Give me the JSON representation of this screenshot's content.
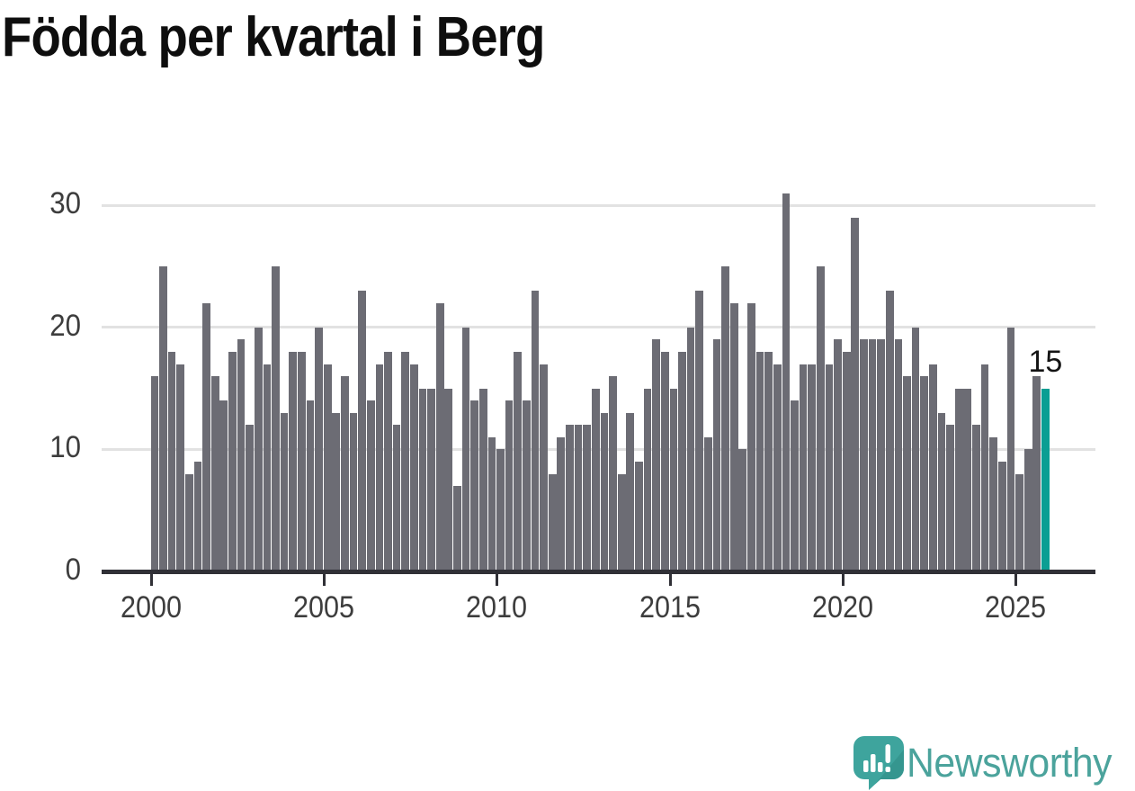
{
  "header": {
    "title": "Födda per kvartal i Berg"
  },
  "colors": {
    "bar": "#6c6c74",
    "highlight": "#0a9e93",
    "gridline": "#e2e2e2",
    "axis_line": "#303036",
    "axis_text": "#3d3d3d",
    "title_text": "#0e0e0e",
    "annotation_text": "#141414",
    "logo_teal": "#3ea49d",
    "logo_teal_dark": "#35968f",
    "logo_text": "#4ba39c"
  },
  "chart_data": {
    "type": "bar",
    "title": "Födda per kvartal i Berg",
    "xlabel": "",
    "ylabel": "",
    "ylim": [
      0,
      33
    ],
    "grid": true,
    "legend": "none",
    "y_tick_values": [
      0,
      10,
      20,
      30
    ],
    "y_tick_labels": [
      "0",
      "10",
      "20",
      "30"
    ],
    "x_tick_labels": [
      "2000",
      "2005",
      "2010",
      "2015",
      "2020",
      "2025"
    ],
    "x_tick_quarter_index": [
      0,
      20,
      40,
      60,
      80,
      100
    ],
    "highlight_index": 103,
    "annotation": {
      "text": "15",
      "target_index": 103
    },
    "categories": [
      "2000 Q1",
      "2000 Q2",
      "2000 Q3",
      "2000 Q4",
      "2001 Q1",
      "2001 Q2",
      "2001 Q3",
      "2001 Q4",
      "2002 Q1",
      "2002 Q2",
      "2002 Q3",
      "2002 Q4",
      "2003 Q1",
      "2003 Q2",
      "2003 Q3",
      "2003 Q4",
      "2004 Q1",
      "2004 Q2",
      "2004 Q3",
      "2004 Q4",
      "2005 Q1",
      "2005 Q2",
      "2005 Q3",
      "2005 Q4",
      "2006 Q1",
      "2006 Q2",
      "2006 Q3",
      "2006 Q4",
      "2007 Q1",
      "2007 Q2",
      "2007 Q3",
      "2007 Q4",
      "2008 Q1",
      "2008 Q2",
      "2008 Q3",
      "2008 Q4",
      "2009 Q1",
      "2009 Q2",
      "2009 Q3",
      "2009 Q4",
      "2010 Q1",
      "2010 Q2",
      "2010 Q3",
      "2010 Q4",
      "2011 Q1",
      "2011 Q2",
      "2011 Q3",
      "2011 Q4",
      "2012 Q1",
      "2012 Q2",
      "2012 Q3",
      "2012 Q4",
      "2013 Q1",
      "2013 Q2",
      "2013 Q3",
      "2013 Q4",
      "2014 Q1",
      "2014 Q2",
      "2014 Q3",
      "2014 Q4",
      "2015 Q1",
      "2015 Q2",
      "2015 Q3",
      "2015 Q4",
      "2016 Q1",
      "2016 Q2",
      "2016 Q3",
      "2016 Q4",
      "2017 Q1",
      "2017 Q2",
      "2017 Q3",
      "2017 Q4",
      "2018 Q1",
      "2018 Q2",
      "2018 Q3",
      "2018 Q4",
      "2019 Q1",
      "2019 Q2",
      "2019 Q3",
      "2019 Q4",
      "2020 Q1",
      "2020 Q2",
      "2020 Q3",
      "2020 Q4",
      "2021 Q1",
      "2021 Q2",
      "2021 Q3",
      "2021 Q4",
      "2022 Q1",
      "2022 Q2",
      "2022 Q3",
      "2022 Q4",
      "2023 Q1",
      "2023 Q2",
      "2023 Q3",
      "2023 Q4",
      "2024 Q1",
      "2024 Q2",
      "2024 Q3",
      "2024 Q4",
      "2025 Q1",
      "2025 Q2",
      "2025 Q3",
      "2025 Q4"
    ],
    "values": [
      16,
      25,
      18,
      17,
      8,
      9,
      22,
      16,
      14,
      18,
      19,
      12,
      20,
      17,
      25,
      13,
      18,
      18,
      14,
      20,
      17,
      13,
      16,
      13,
      23,
      14,
      17,
      18,
      12,
      18,
      17,
      15,
      15,
      22,
      15,
      7,
      20,
      14,
      15,
      11,
      10,
      14,
      18,
      14,
      23,
      17,
      8,
      11,
      12,
      12,
      12,
      15,
      13,
      16,
      8,
      13,
      9,
      15,
      19,
      18,
      15,
      18,
      20,
      23,
      11,
      19,
      25,
      22,
      10,
      22,
      18,
      18,
      17,
      31,
      14,
      17,
      17,
      25,
      17,
      19,
      18,
      29,
      19,
      19,
      19,
      23,
      19,
      16,
      20,
      16,
      17,
      13,
      12,
      15,
      15,
      12,
      17,
      11,
      9,
      20,
      8,
      10,
      16,
      15
    ]
  },
  "footer": {
    "brand": "Newsworthy",
    "logo_icon": "newsworthy-speech-bubble-chart-icon"
  }
}
